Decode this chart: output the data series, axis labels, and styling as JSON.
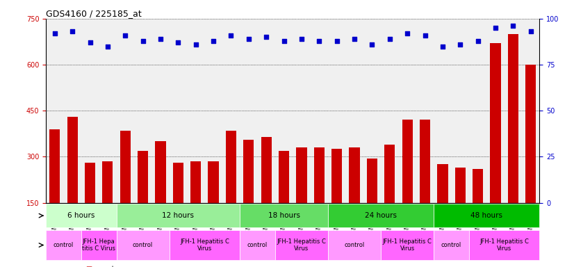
{
  "title": "GDS4160 / 225185_at",
  "samples": [
    "GSM523814",
    "GSM523815",
    "GSM523800",
    "GSM523801",
    "GSM523816",
    "GSM523817",
    "GSM523818",
    "GSM523802",
    "GSM523803",
    "GSM523804",
    "GSM523819",
    "GSM523820",
    "GSM523821",
    "GSM523805",
    "GSM523806",
    "GSM523807",
    "GSM523822",
    "GSM523823",
    "GSM523824",
    "GSM523808",
    "GSM523809",
    "GSM523810",
    "GSM523825",
    "GSM523826",
    "GSM523827",
    "GSM523811",
    "GSM523812",
    "GSM523813"
  ],
  "counts": [
    390,
    430,
    280,
    285,
    385,
    320,
    350,
    280,
    285,
    285,
    385,
    355,
    365,
    320,
    330,
    330,
    325,
    330,
    295,
    340,
    420,
    420,
    275,
    265,
    260,
    670,
    700,
    600
  ],
  "percentile": [
    92,
    93,
    87,
    85,
    91,
    88,
    89,
    87,
    86,
    88,
    91,
    89,
    90,
    88,
    89,
    88,
    88,
    89,
    86,
    89,
    92,
    91,
    85,
    86,
    88,
    95,
    96,
    93
  ],
  "bar_color": "#cc0000",
  "dot_color": "#0000cc",
  "ylim_left": [
    150,
    750
  ],
  "yticks_left": [
    150,
    300,
    450,
    600,
    750
  ],
  "ylim_right": [
    0,
    100
  ],
  "yticks_right": [
    0,
    25,
    50,
    75,
    100
  ],
  "left_axis_color": "#cc0000",
  "right_axis_color": "#0000cc",
  "time_groups": [
    {
      "label": "6 hours",
      "start": 0,
      "end": 4,
      "color": "#ccffcc"
    },
    {
      "label": "12 hours",
      "start": 4,
      "end": 11,
      "color": "#99ee99"
    },
    {
      "label": "18 hours",
      "start": 11,
      "end": 16,
      "color": "#66dd66"
    },
    {
      "label": "24 hours",
      "start": 16,
      "end": 22,
      "color": "#33cc33"
    },
    {
      "label": "48 hours",
      "start": 22,
      "end": 28,
      "color": "#00bb00"
    }
  ],
  "infection_groups": [
    {
      "label": "control",
      "start": 0,
      "end": 2,
      "color": "#ff99ff"
    },
    {
      "label": "JFH-1 Hepa\ntitis C Virus",
      "start": 2,
      "end": 4,
      "color": "#ff66ff"
    },
    {
      "label": "control",
      "start": 4,
      "end": 7,
      "color": "#ff99ff"
    },
    {
      "label": "JFH-1 Hepatitis C\nVirus",
      "start": 7,
      "end": 11,
      "color": "#ff66ff"
    },
    {
      "label": "control",
      "start": 11,
      "end": 13,
      "color": "#ff99ff"
    },
    {
      "label": "JFH-1 Hepatitis C\nVirus",
      "start": 13,
      "end": 16,
      "color": "#ff66ff"
    },
    {
      "label": "control",
      "start": 16,
      "end": 19,
      "color": "#ff99ff"
    },
    {
      "label": "JFH-1 Hepatitis C\nVirus",
      "start": 19,
      "end": 22,
      "color": "#ff66ff"
    },
    {
      "label": "control",
      "start": 22,
      "end": 24,
      "color": "#ff99ff"
    },
    {
      "label": "JFH-1 Hepatitis C\nVirus",
      "start": 24,
      "end": 28,
      "color": "#ff66ff"
    }
  ],
  "bg_color": "#ffffff",
  "plot_bg_color": "#f0f0f0",
  "grid_color": "#000000",
  "tick_label_color_left": "#cc0000",
  "tick_label_color_right": "#0000cc"
}
